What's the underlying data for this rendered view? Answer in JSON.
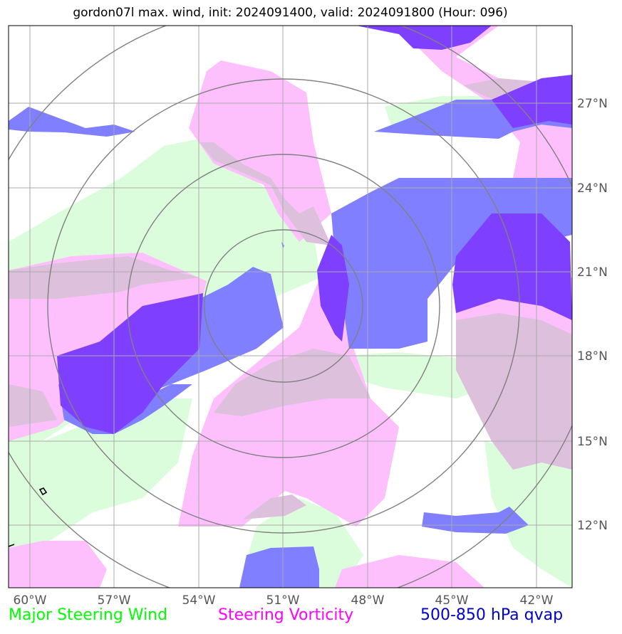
{
  "title": "gordon07l max. wind, init: 2024091400, valid: 2024091800 (Hour: 096)",
  "legend": {
    "wind": {
      "label": "Major Steering Wind",
      "color": "#00ff00"
    },
    "vorticity": {
      "label": "Steering Vorticity",
      "color": "#ff00ff"
    },
    "qvap": {
      "label": "500-850 hPa qvap",
      "color": "#0000cc"
    }
  },
  "map": {
    "lon_ticks": [
      "60°W",
      "57°W",
      "54°W",
      "51°W",
      "48°W",
      "45°W",
      "42°W"
    ],
    "lat_ticks": [
      "27°N",
      "24°N",
      "21°N",
      "18°N",
      "15°N",
      "12°N"
    ],
    "colors": {
      "wind_fill": "#dcfddc",
      "vorticity_fill": "#fdc0fd",
      "overlap_fill": "#dcc0dc",
      "qvap_fill": "#7f7fff",
      "qvap_strong_fill": "#7f3fff",
      "grid": "#aaaaaa",
      "range_rings": "#808080"
    },
    "range_rings": 4
  }
}
